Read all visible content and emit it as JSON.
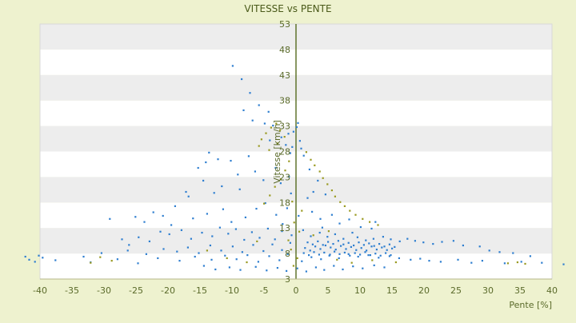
{
  "chart_data": {
    "type": "scatter",
    "title": "VITESSE vs PENTE",
    "xlabel": "Pente [%]",
    "ylabel": "Vitesse [km/h]",
    "xlim": [
      -40,
      40
    ],
    "ylim": [
      3,
      53
    ],
    "x_ticks": [
      -40,
      -35,
      -30,
      -25,
      -20,
      -15,
      -10,
      -5,
      0,
      5,
      10,
      15,
      20,
      25,
      30,
      35,
      40
    ],
    "y_ticks": [
      3,
      8,
      13,
      18,
      23,
      28,
      33,
      38,
      43,
      48,
      53
    ],
    "grid": true,
    "legend": "none",
    "colors": {
      "background": "#eef2cf",
      "band_light": "#ffffff",
      "band_dark": "#ededed",
      "axis": "#556b1e",
      "series_blue": "#2f7fd0",
      "series_olive": "#9a9a22"
    },
    "series": [
      {
        "color": "#2f7fd0",
        "points": [
          [
            -9.9,
            44.8
          ],
          [
            -8.5,
            42.2
          ],
          [
            -7.2,
            39.5
          ],
          [
            -8.2,
            36.1
          ],
          [
            -5.8,
            37.1
          ],
          [
            -4.3,
            35.8
          ],
          [
            -3.6,
            33.1
          ],
          [
            -4.9,
            33.5
          ],
          [
            -6.8,
            34.1
          ],
          [
            -13.6,
            27.8
          ],
          [
            -12.2,
            26.5
          ],
          [
            -14.1,
            25.9
          ],
          [
            -15.3,
            24.8
          ],
          [
            -10.2,
            26.2
          ],
          [
            -7.4,
            27.1
          ],
          [
            -4.1,
            30.2
          ],
          [
            -2.3,
            30.8
          ],
          [
            -1.2,
            31.5
          ],
          [
            0.1,
            32.8
          ],
          [
            0.3,
            33.6
          ],
          [
            -0.4,
            31.9
          ],
          [
            0.6,
            30.1
          ],
          [
            0.8,
            28.6
          ],
          [
            -0.6,
            28.9
          ],
          [
            -1.6,
            29.3
          ],
          [
            -0.9,
            27.7
          ],
          [
            1.2,
            27.2
          ],
          [
            -11.6,
            21.2
          ],
          [
            -12.8,
            19.9
          ],
          [
            -16.8,
            19.2
          ],
          [
            -17.2,
            20.1
          ],
          [
            -14.5,
            22.3
          ],
          [
            -9.1,
            23.5
          ],
          [
            -6.4,
            24.1
          ],
          [
            -3.2,
            24.8
          ],
          [
            -5.1,
            22.4
          ],
          [
            -8.8,
            20.6
          ],
          [
            -2.4,
            21.8
          ],
          [
            -1.1,
            23.1
          ],
          [
            2.1,
            24.5
          ],
          [
            3.4,
            22.3
          ],
          [
            2.7,
            20.1
          ],
          [
            4.6,
            19.6
          ],
          [
            1.8,
            18.9
          ],
          [
            -0.8,
            19.8
          ],
          [
            -22.3,
            16.1
          ],
          [
            -20.8,
            15.4
          ],
          [
            -18.9,
            17.3
          ],
          [
            -23.7,
            14.2
          ],
          [
            -25.1,
            15.2
          ],
          [
            -29.1,
            14.8
          ],
          [
            -19.5,
            13.6
          ],
          [
            -16.1,
            14.9
          ],
          [
            -13.9,
            15.8
          ],
          [
            -11.4,
            16.7
          ],
          [
            -10.1,
            14.2
          ],
          [
            -7.9,
            15.1
          ],
          [
            -6.2,
            16.8
          ],
          [
            -4.8,
            17.9
          ],
          [
            -3.1,
            15.6
          ],
          [
            -2.1,
            13.8
          ],
          [
            -1.4,
            16.9
          ],
          [
            0.4,
            15.4
          ],
          [
            2.5,
            16.2
          ],
          [
            3.8,
            14.8
          ],
          [
            5.6,
            15.6
          ],
          [
            4.1,
            13.1
          ],
          [
            6.8,
            13.9
          ],
          [
            8.3,
            14.7
          ],
          [
            10.1,
            13.2
          ],
          [
            11.8,
            12.9
          ],
          [
            12.4,
            14.2
          ],
          [
            -27.2,
            10.8
          ],
          [
            -26.1,
            9.7
          ],
          [
            -24.6,
            11.2
          ],
          [
            -22.9,
            10.4
          ],
          [
            -21.2,
            12.3
          ],
          [
            -19.8,
            11.8
          ],
          [
            -17.9,
            12.6
          ],
          [
            -16.4,
            10.9
          ],
          [
            -14.7,
            12.1
          ],
          [
            -13.1,
            11.4
          ],
          [
            -11.9,
            13.1
          ],
          [
            -10.6,
            11.9
          ],
          [
            -9.4,
            12.8
          ],
          [
            -8.1,
            10.7
          ],
          [
            -6.9,
            12.2
          ],
          [
            -5.7,
            11.1
          ],
          [
            -4.4,
            12.9
          ],
          [
            -3.3,
            10.8
          ],
          [
            -2.2,
            12.4
          ],
          [
            -0.7,
            11.6
          ],
          [
            1.1,
            12.6
          ],
          [
            2.3,
            11.4
          ],
          [
            3.7,
            12.1
          ],
          [
            4.9,
            11.3
          ],
          [
            6.1,
            11.8
          ],
          [
            7.4,
            10.9
          ],
          [
            8.8,
            12.1
          ],
          [
            9.6,
            11.2
          ],
          [
            10.9,
            10.6
          ],
          [
            12.1,
            10.9
          ],
          [
            13.6,
            11.3
          ],
          [
            14.8,
            10.8
          ],
          [
            16.2,
            10.4
          ],
          [
            17.4,
            10.9
          ],
          [
            18.6,
            10.5
          ],
          [
            19.9,
            10.2
          ],
          [
            21.4,
            9.9
          ],
          [
            22.8,
            10.3
          ],
          [
            24.6,
            10.5
          ],
          [
            26.1,
            9.6
          ],
          [
            28.7,
            9.4
          ],
          [
            30.2,
            8.6
          ],
          [
            31.8,
            8.3
          ],
          [
            33.9,
            8.1
          ],
          [
            36.6,
            7.5
          ],
          [
            -39.6,
            7.2
          ],
          [
            -40.2,
            7.6
          ],
          [
            -41.7,
            6.8
          ],
          [
            -42.3,
            7.4
          ],
          [
            -40.8,
            6.4
          ],
          [
            -37.6,
            6.7
          ],
          [
            -32.1,
            6.3
          ],
          [
            -27.9,
            6.9
          ],
          [
            -24.7,
            6.1
          ],
          [
            -21.6,
            7.1
          ],
          [
            -18.2,
            6.6
          ],
          [
            -15.8,
            7.4
          ],
          [
            -13.2,
            6.8
          ],
          [
            -11.1,
            7.6
          ],
          [
            -9.3,
            6.9
          ],
          [
            -7.6,
            7.7
          ],
          [
            -5.9,
            6.4
          ],
          [
            -4.2,
            7.5
          ],
          [
            -2.6,
            6.7
          ],
          [
            -1.3,
            7.9
          ],
          [
            0.9,
            6.5
          ],
          [
            2.4,
            7.3
          ],
          [
            3.9,
            6.9
          ],
          [
            5.3,
            7.8
          ],
          [
            6.7,
            7.1
          ],
          [
            8.2,
            7.9
          ],
          [
            9.7,
            7.4
          ],
          [
            11.3,
            7.7
          ],
          [
            12.9,
            7.2
          ],
          [
            14.6,
            7.5
          ],
          [
            16.1,
            7.1
          ],
          [
            17.9,
            6.8
          ],
          [
            19.4,
            7.0
          ],
          [
            20.8,
            6.6
          ],
          [
            22.6,
            6.4
          ],
          [
            25.3,
            6.8
          ],
          [
            27.4,
            6.2
          ],
          [
            29.1,
            6.6
          ],
          [
            32.6,
            6.1
          ],
          [
            35.2,
            6.4
          ],
          [
            38.4,
            6.2
          ],
          [
            41.8,
            5.9
          ],
          [
            -14.4,
            5.6
          ],
          [
            -12.6,
            4.9
          ],
          [
            -10.4,
            5.3
          ],
          [
            -8.7,
            4.8
          ],
          [
            -6.3,
            5.4
          ],
          [
            -4.6,
            4.7
          ],
          [
            -2.9,
            5.2
          ],
          [
            -1.5,
            4.6
          ],
          [
            0.2,
            5.1
          ],
          [
            1.6,
            4.5
          ],
          [
            3.1,
            5.3
          ],
          [
            4.4,
            4.8
          ],
          [
            5.9,
            5.6
          ],
          [
            7.3,
            4.9
          ],
          [
            8.9,
            5.5
          ],
          [
            10.4,
            5.1
          ],
          [
            12.2,
            5.7
          ],
          [
            13.8,
            5.3
          ],
          [
            1.4,
            9.1
          ],
          [
            2.2,
            8.6
          ],
          [
            3.0,
            9.4
          ],
          [
            3.8,
            8.9
          ],
          [
            4.6,
            9.6
          ],
          [
            5.4,
            9.2
          ],
          [
            6.2,
            8.8
          ],
          [
            7.0,
            9.5
          ],
          [
            7.8,
            8.9
          ],
          [
            8.6,
            9.3
          ],
          [
            9.4,
            8.7
          ],
          [
            10.2,
            9.1
          ],
          [
            11.0,
            8.6
          ],
          [
            11.8,
            9.4
          ],
          [
            12.6,
            8.8
          ],
          [
            13.4,
            9.2
          ],
          [
            14.2,
            8.7
          ],
          [
            15.0,
            9.0
          ],
          [
            1.8,
            10.2
          ],
          [
            2.6,
            9.8
          ],
          [
            3.4,
            10.4
          ],
          [
            4.2,
            9.7
          ],
          [
            5.0,
            10.3
          ],
          [
            5.8,
            9.9
          ],
          [
            6.6,
            10.5
          ],
          [
            7.4,
            9.8
          ],
          [
            8.2,
            10.1
          ],
          [
            9.0,
            9.6
          ],
          [
            9.8,
            10.2
          ],
          [
            10.6,
            9.7
          ],
          [
            11.4,
            10.0
          ],
          [
            12.2,
            9.5
          ],
          [
            13.0,
            9.9
          ],
          [
            13.8,
            9.4
          ],
          [
            14.6,
            9.8
          ],
          [
            15.4,
            9.3
          ],
          [
            1.2,
            8.1
          ],
          [
            2.0,
            7.7
          ],
          [
            2.8,
            8.3
          ],
          [
            3.6,
            7.8
          ],
          [
            4.4,
            8.2
          ],
          [
            5.2,
            7.6
          ],
          [
            6.0,
            8.4
          ],
          [
            6.8,
            7.9
          ],
          [
            7.6,
            8.2
          ],
          [
            8.4,
            7.6
          ],
          [
            9.2,
            8.1
          ],
          [
            10.0,
            7.8
          ],
          [
            10.8,
            8.3
          ],
          [
            11.6,
            7.7
          ],
          [
            12.4,
            8.0
          ],
          [
            13.2,
            7.6
          ],
          [
            14.0,
            8.1
          ],
          [
            14.8,
            7.7
          ],
          [
            -18.6,
            8.4
          ],
          [
            -16.9,
            9.2
          ],
          [
            -15.2,
            8.1
          ],
          [
            -13.4,
            9.6
          ],
          [
            -11.7,
            8.6
          ],
          [
            -9.9,
            9.4
          ],
          [
            -8.4,
            8.3
          ],
          [
            -6.7,
            9.7
          ],
          [
            -5.1,
            8.5
          ],
          [
            -3.7,
            9.8
          ],
          [
            -2.2,
            8.7
          ],
          [
            -0.9,
            10.1
          ],
          [
            -20.7,
            8.9
          ],
          [
            -23.4,
            7.9
          ],
          [
            -26.3,
            8.6
          ],
          [
            -30.4,
            8.1
          ],
          [
            -33.2,
            7.4
          ]
        ]
      },
      {
        "color": "#9a9a22",
        "points": [
          [
            -5.4,
            30.4
          ],
          [
            -5.8,
            29.1
          ],
          [
            -4.7,
            31.6
          ],
          [
            -3.9,
            32.7
          ],
          [
            -3.1,
            33.5
          ],
          [
            -2.5,
            32.2
          ],
          [
            -1.8,
            30.9
          ],
          [
            -2.9,
            29.6
          ],
          [
            -4.2,
            28.3
          ],
          [
            1.6,
            27.9
          ],
          [
            2.3,
            26.4
          ],
          [
            2.9,
            25.3
          ],
          [
            3.7,
            24.1
          ],
          [
            4.2,
            22.8
          ],
          [
            4.9,
            21.6
          ],
          [
            5.6,
            20.4
          ],
          [
            6.1,
            19.2
          ],
          [
            6.9,
            18.1
          ],
          [
            7.6,
            17.3
          ],
          [
            8.4,
            16.4
          ],
          [
            9.3,
            15.6
          ],
          [
            10.4,
            14.8
          ],
          [
            11.5,
            14.2
          ],
          [
            12.8,
            13.6
          ],
          [
            -1.1,
            26.1
          ],
          [
            -1.7,
            24.3
          ],
          [
            -2.4,
            22.6
          ],
          [
            -3.3,
            21.1
          ],
          [
            -4.1,
            19.4
          ],
          [
            -5.0,
            17.8
          ],
          [
            -0.6,
            18.2
          ],
          [
            0.9,
            16.4
          ],
          [
            -0.3,
            14.1
          ],
          [
            0.5,
            12.3
          ],
          [
            -1.2,
            10.6
          ],
          [
            -0.8,
            8.8
          ],
          [
            0.2,
            7.1
          ],
          [
            -0.4,
            5.6
          ],
          [
            -32.1,
            6.2
          ],
          [
            -30.6,
            7.3
          ],
          [
            -28.8,
            6.6
          ],
          [
            -13.9,
            8.6
          ],
          [
            -10.8,
            7.1
          ],
          [
            -7.7,
            6.3
          ],
          [
            -6.1,
            10.4
          ],
          [
            2.7,
            11.6
          ],
          [
            5.1,
            12.4
          ],
          [
            6.4,
            6.8
          ],
          [
            8.7,
            6.2
          ],
          [
            11.9,
            6.7
          ],
          [
            15.6,
            6.3
          ],
          [
            33.1,
            6.1
          ],
          [
            34.6,
            6.3
          ],
          [
            35.8,
            6.0
          ]
        ]
      }
    ]
  }
}
